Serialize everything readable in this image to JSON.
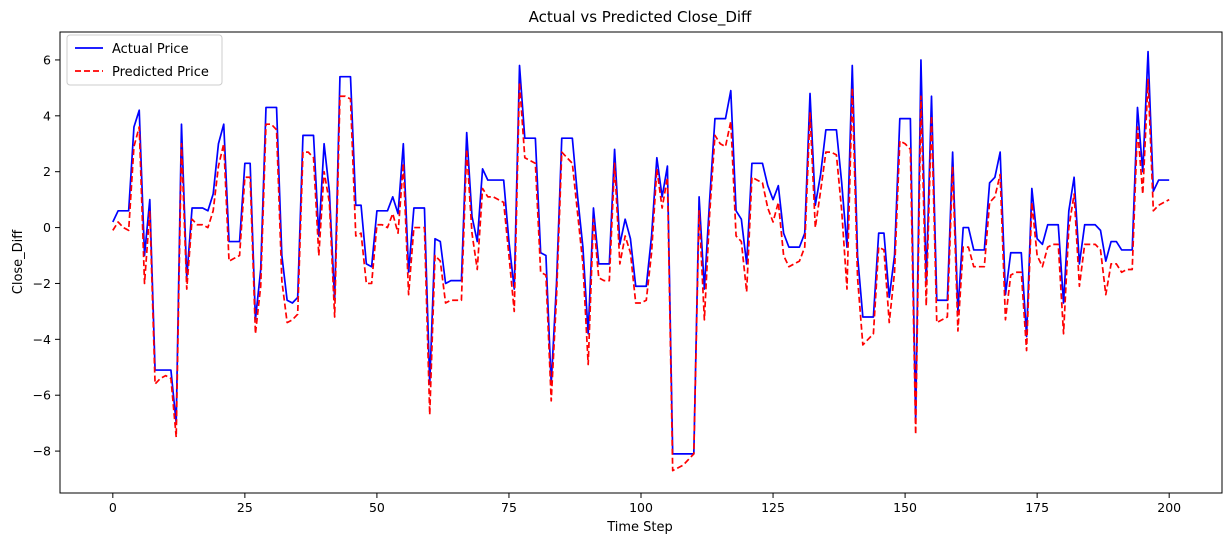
{
  "chart_data": {
    "type": "line",
    "title": "Actual vs Predicted Close_Diff",
    "xlabel": "Time Step",
    "ylabel": "Close_Diff",
    "xlim": [
      -10,
      210
    ],
    "ylim": [
      -9.5,
      7.0
    ],
    "xticks": [
      0,
      25,
      50,
      75,
      100,
      125,
      150,
      175,
      200
    ],
    "yticks": [
      -8,
      -6,
      -4,
      -2,
      0,
      2,
      4,
      6
    ],
    "grid": false,
    "legend_position": "top-left",
    "series": [
      {
        "name": "Actual Price",
        "color": "#0000ff",
        "style": "solid",
        "values": [
          0.2,
          0.6,
          0.6,
          0.6,
          3.6,
          4.2,
          -1.0,
          1.0,
          -5.1,
          -5.1,
          -5.1,
          -5.1,
          -7.0,
          3.7,
          -1.8,
          0.7,
          0.7,
          0.7,
          0.6,
          1.2,
          3.0,
          3.7,
          -0.5,
          -0.5,
          -0.5,
          2.3,
          2.3,
          -3.3,
          -1.5,
          4.3,
          4.3,
          4.3,
          -1.0,
          -2.6,
          -2.7,
          -2.5,
          3.3,
          3.3,
          3.3,
          -0.3,
          3.0,
          1.3,
          -2.6,
          5.4,
          5.4,
          5.4,
          0.8,
          0.8,
          -1.3,
          -1.4,
          0.6,
          0.6,
          0.6,
          1.1,
          0.5,
          3.0,
          -1.6,
          0.7,
          0.7,
          0.7,
          -5.6,
          -0.4,
          -0.5,
          -2.0,
          -1.9,
          -1.9,
          -1.9,
          3.4,
          0.4,
          -0.5,
          2.1,
          1.7,
          1.7,
          1.7,
          1.7,
          -0.5,
          -2.2,
          5.8,
          3.2,
          3.2,
          3.2,
          -0.9,
          -1.0,
          -5.6,
          -2.0,
          3.2,
          3.2,
          3.2,
          1.1,
          -0.7,
          -3.8,
          0.7,
          -1.3,
          -1.3,
          -1.3,
          2.8,
          -0.6,
          0.3,
          -0.4,
          -2.1,
          -2.1,
          -2.1,
          -0.3,
          2.5,
          1.1,
          2.2,
          -8.1,
          -8.1,
          -8.1,
          -8.1,
          -8.1,
          1.1,
          -2.2,
          1.0,
          3.9,
          3.9,
          3.9,
          4.9,
          0.6,
          0.3,
          -1.3,
          2.3,
          2.3,
          2.3,
          1.5,
          1.0,
          1.5,
          -0.2,
          -0.7,
          -0.7,
          -0.7,
          -0.2,
          4.8,
          0.8,
          1.9,
          3.5,
          3.5,
          3.5,
          1.6,
          -0.7,
          5.8,
          -1.0,
          -3.2,
          -3.2,
          -3.2,
          -0.2,
          -0.2,
          -2.5,
          -1.0,
          3.9,
          3.9,
          3.9,
          -6.9,
          6.0,
          -2.0,
          4.7,
          -2.6,
          -2.6,
          -2.6,
          2.7,
          -3.0,
          0.0,
          0.0,
          -0.8,
          -0.8,
          -0.8,
          1.6,
          1.8,
          2.7,
          -2.4,
          -0.9,
          -0.9,
          -0.9,
          -3.9,
          1.4,
          -0.4,
          -0.6,
          0.1,
          0.1,
          0.1,
          -2.7,
          0.6,
          1.8,
          -1.3,
          0.1,
          0.1,
          0.1,
          -0.1,
          -1.2,
          -0.5,
          -0.5,
          -0.8,
          -0.8,
          -0.8,
          4.3,
          2.0,
          6.3,
          1.3,
          1.7,
          1.7,
          1.7
        ]
      },
      {
        "name": "Predicted Price",
        "color": "#ff0000",
        "style": "dashed",
        "values": [
          -0.1,
          0.2,
          0.0,
          -0.1,
          2.9,
          3.6,
          -2.0,
          0.6,
          -5.6,
          -5.4,
          -5.3,
          -5.4,
          -7.5,
          3.0,
          -2.2,
          0.3,
          0.1,
          0.1,
          0.0,
          0.6,
          2.2,
          3.0,
          -1.2,
          -1.1,
          -1.0,
          1.8,
          1.8,
          -3.8,
          -2.1,
          3.7,
          3.7,
          3.5,
          -1.9,
          -3.4,
          -3.3,
          -3.1,
          2.7,
          2.7,
          2.5,
          -1.0,
          2.0,
          0.9,
          -3.2,
          4.7,
          4.7,
          4.6,
          -0.3,
          -0.2,
          -2.0,
          -2.0,
          0.1,
          0.1,
          0.0,
          0.5,
          -0.2,
          2.3,
          -2.4,
          0.0,
          0.0,
          0.0,
          -6.7,
          -1.0,
          -1.2,
          -2.7,
          -2.6,
          -2.6,
          -2.6,
          2.8,
          -0.2,
          -1.5,
          1.4,
          1.1,
          1.1,
          1.0,
          0.9,
          -1.0,
          -3.0,
          5.2,
          2.5,
          2.4,
          2.3,
          -1.6,
          -1.7,
          -6.2,
          -2.5,
          2.7,
          2.5,
          2.3,
          0.5,
          -1.3,
          -4.9,
          0.3,
          -1.8,
          -1.9,
          -1.9,
          2.3,
          -1.3,
          -0.3,
          -0.9,
          -2.7,
          -2.7,
          -2.6,
          -0.9,
          2.1,
          0.7,
          1.8,
          -8.7,
          -8.6,
          -8.5,
          -8.3,
          -8.1,
          0.6,
          -3.3,
          0.5,
          3.3,
          3.0,
          2.9,
          3.8,
          -0.3,
          -0.5,
          -2.3,
          1.8,
          1.7,
          1.6,
          0.7,
          0.2,
          0.9,
          -1.0,
          -1.4,
          -1.3,
          -1.2,
          -0.7,
          4.1,
          0.0,
          1.3,
          2.7,
          2.7,
          2.6,
          0.6,
          -2.2,
          5.0,
          -1.8,
          -4.2,
          -4.0,
          -3.8,
          -0.7,
          -0.8,
          -3.4,
          -1.6,
          3.1,
          3.0,
          2.8,
          -7.4,
          4.7,
          -2.8,
          4.0,
          -3.4,
          -3.3,
          -3.2,
          2.2,
          -3.7,
          -0.7,
          -0.7,
          -1.4,
          -1.4,
          -1.4,
          0.9,
          1.1,
          1.9,
          -3.3,
          -1.7,
          -1.6,
          -1.6,
          -4.4,
          0.9,
          -1.0,
          -1.4,
          -0.7,
          -0.6,
          -0.6,
          -3.8,
          0.0,
          1.2,
          -2.1,
          -0.6,
          -0.6,
          -0.6,
          -0.8,
          -2.4,
          -1.3,
          -1.3,
          -1.6,
          -1.5,
          -1.5,
          3.6,
          1.2,
          5.3,
          0.6,
          0.8,
          0.9,
          1.0
        ]
      }
    ]
  }
}
